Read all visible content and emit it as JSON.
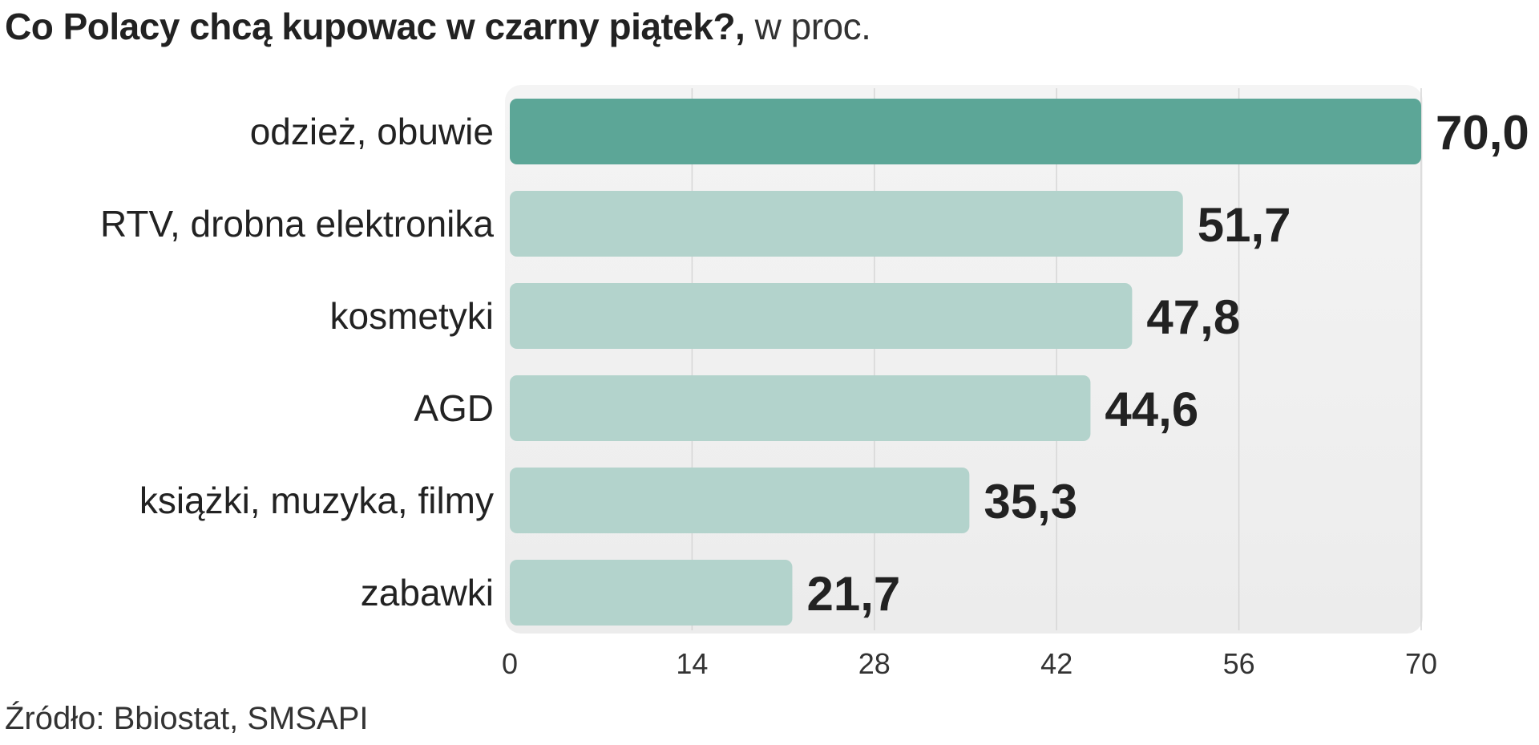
{
  "title": "Co Polacy chcą kupowac w czarny piątek?,",
  "unit": "w proc.",
  "source": "Źródło: Bbiostat, SMSAPI",
  "colors": {
    "highlight_bar": "#5ca697",
    "bar": "#b3d3cc",
    "plot_background": "#ececec",
    "text": "#222222"
  },
  "chart_data": {
    "type": "bar",
    "orientation": "horizontal",
    "categories": [
      "odzież, obuwie",
      "RTV, drobna elektronika",
      "kosmetyki",
      "AGD",
      "książki, muzyka, filmy",
      "zabawki"
    ],
    "values": [
      70.0,
      51.7,
      47.8,
      44.6,
      35.3,
      21.7
    ],
    "value_labels": [
      "70,0",
      "51,7",
      "47,8",
      "44,6",
      "35,3",
      "21,7"
    ],
    "highlighted_category": "odzież, obuwie",
    "x_ticks": [
      0,
      14,
      28,
      42,
      56,
      70
    ],
    "xlim": [
      0,
      70
    ],
    "grid": true,
    "title": "Co Polacy chcą kupowac w czarny piątek?, w proc.",
    "xlabel": "",
    "ylabel": ""
  }
}
